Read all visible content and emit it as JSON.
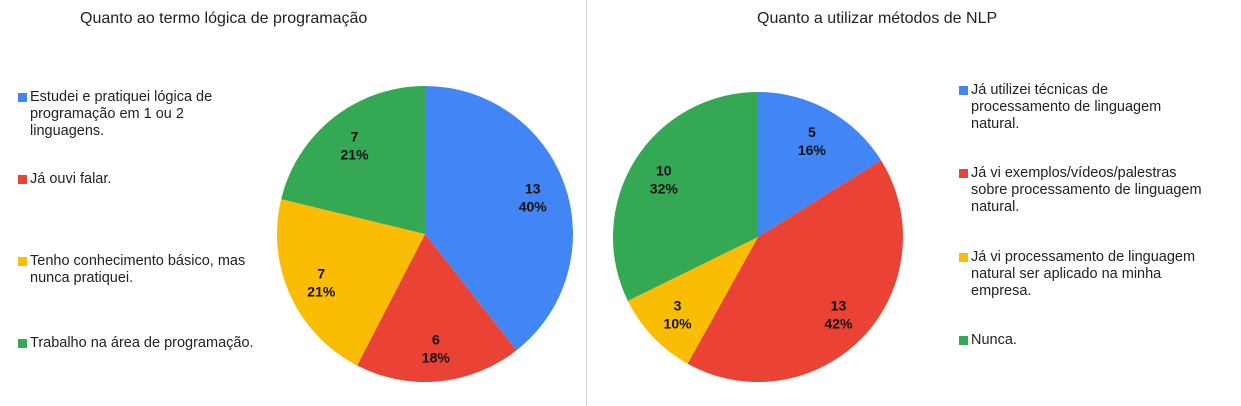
{
  "chart_data": [
    {
      "type": "pie",
      "title": "Quanto ao termo lógica de programação",
      "slices": [
        {
          "label": "Estudei e pratiquei lógica de programação em 1 ou 2 linguagens.",
          "value": 13,
          "percent": "40%",
          "color": "#4285F4"
        },
        {
          "label": "Já ouvi falar.",
          "value": 6,
          "percent": "18%",
          "color": "#EA4335"
        },
        {
          "label": "Tenho conhecimento básico, mas nunca pratiquei.",
          "value": 7,
          "percent": "21%",
          "color": "#FBBC04"
        },
        {
          "label": "Trabalho na área de programação.",
          "value": 7,
          "percent": "21%",
          "color": "#34A853"
        }
      ],
      "legend_position": "left"
    },
    {
      "type": "pie",
      "title": "Quanto a utilizar métodos de NLP",
      "slices": [
        {
          "label": "Já utilizei técnicas de processamento de linguagem natural.",
          "value": 5,
          "percent": "16%",
          "color": "#4285F4"
        },
        {
          "label": "Já vi exemplos/vídeos/palestras sobre processamento de linguagem natural.",
          "value": 13,
          "percent": "42%",
          "color": "#EA4335"
        },
        {
          "label": "Já vi processamento de linguagem natural ser aplicado na minha empresa.",
          "value": 3,
          "percent": "10%",
          "color": "#FBBC04"
        },
        {
          "label": "Nunca.",
          "value": 10,
          "percent": "32%",
          "color": "#34A853"
        }
      ],
      "legend_position": "right"
    }
  ]
}
